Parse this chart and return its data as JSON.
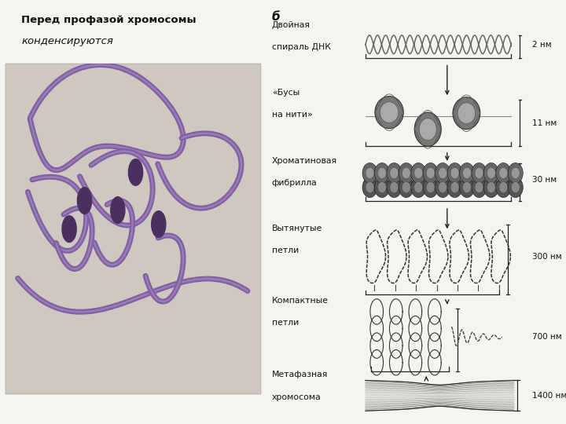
{
  "bg_color": "#f5f5f0",
  "left_title_bold": "Перед профазой хромосомы",
  "left_title_italic": "конденсируются",
  "right_label": "б",
  "levels": [
    {
      "label_line1": "Двойная",
      "label_line2": "спираль ДНК",
      "size": "2 нм"
    },
    {
      "label_line1": "«Бусы",
      "label_line2": "на нити»",
      "size": "11 нм"
    },
    {
      "label_line1": "Хроматиновая",
      "label_line2": "фибрилла",
      "size": "30 нм"
    },
    {
      "label_line1": "Вытянутые",
      "label_line2": "петли",
      "size": "300 нм"
    },
    {
      "label_line1": "Компактные",
      "label_line2": "петли",
      "size": "700 нм"
    },
    {
      "label_line1": "Метафазная",
      "label_line2": "хромосома",
      "size": "1400 нм"
    }
  ],
  "text_color": "#111111",
  "line_color": "#222222",
  "img_bg": "#dedad0"
}
